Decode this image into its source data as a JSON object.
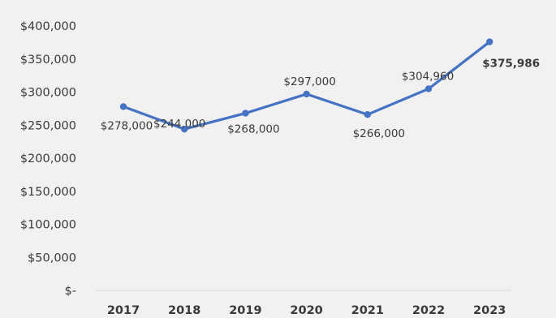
{
  "chart_data": {
    "type": "line",
    "title": "",
    "xlabel": "",
    "ylabel": "",
    "categories": [
      "2017",
      "2018",
      "2019",
      "2020",
      "2021",
      "2022",
      "2023"
    ],
    "series": [
      {
        "values": [
          278000,
          244000,
          268000,
          297000,
          266000,
          304960,
          375986
        ],
        "color": "#4472C4"
      }
    ],
    "data_labels": [
      "$278,000",
      "$244,000",
      "$268,000",
      "$297,000",
      "$266,000",
      "$304,960",
      "$375,986"
    ],
    "ylim": [
      0,
      400000
    ],
    "y_ticks": [
      400000,
      350000,
      300000,
      250000,
      200000,
      150000,
      100000,
      50000,
      0
    ],
    "y_tick_labels": [
      "$400,000",
      "$350,000",
      "$300,000",
      "$250,000",
      "$200,000",
      "$150,000",
      "$100,000",
      "$50,000",
      "$-"
    ],
    "grid": false,
    "legend": "none"
  }
}
